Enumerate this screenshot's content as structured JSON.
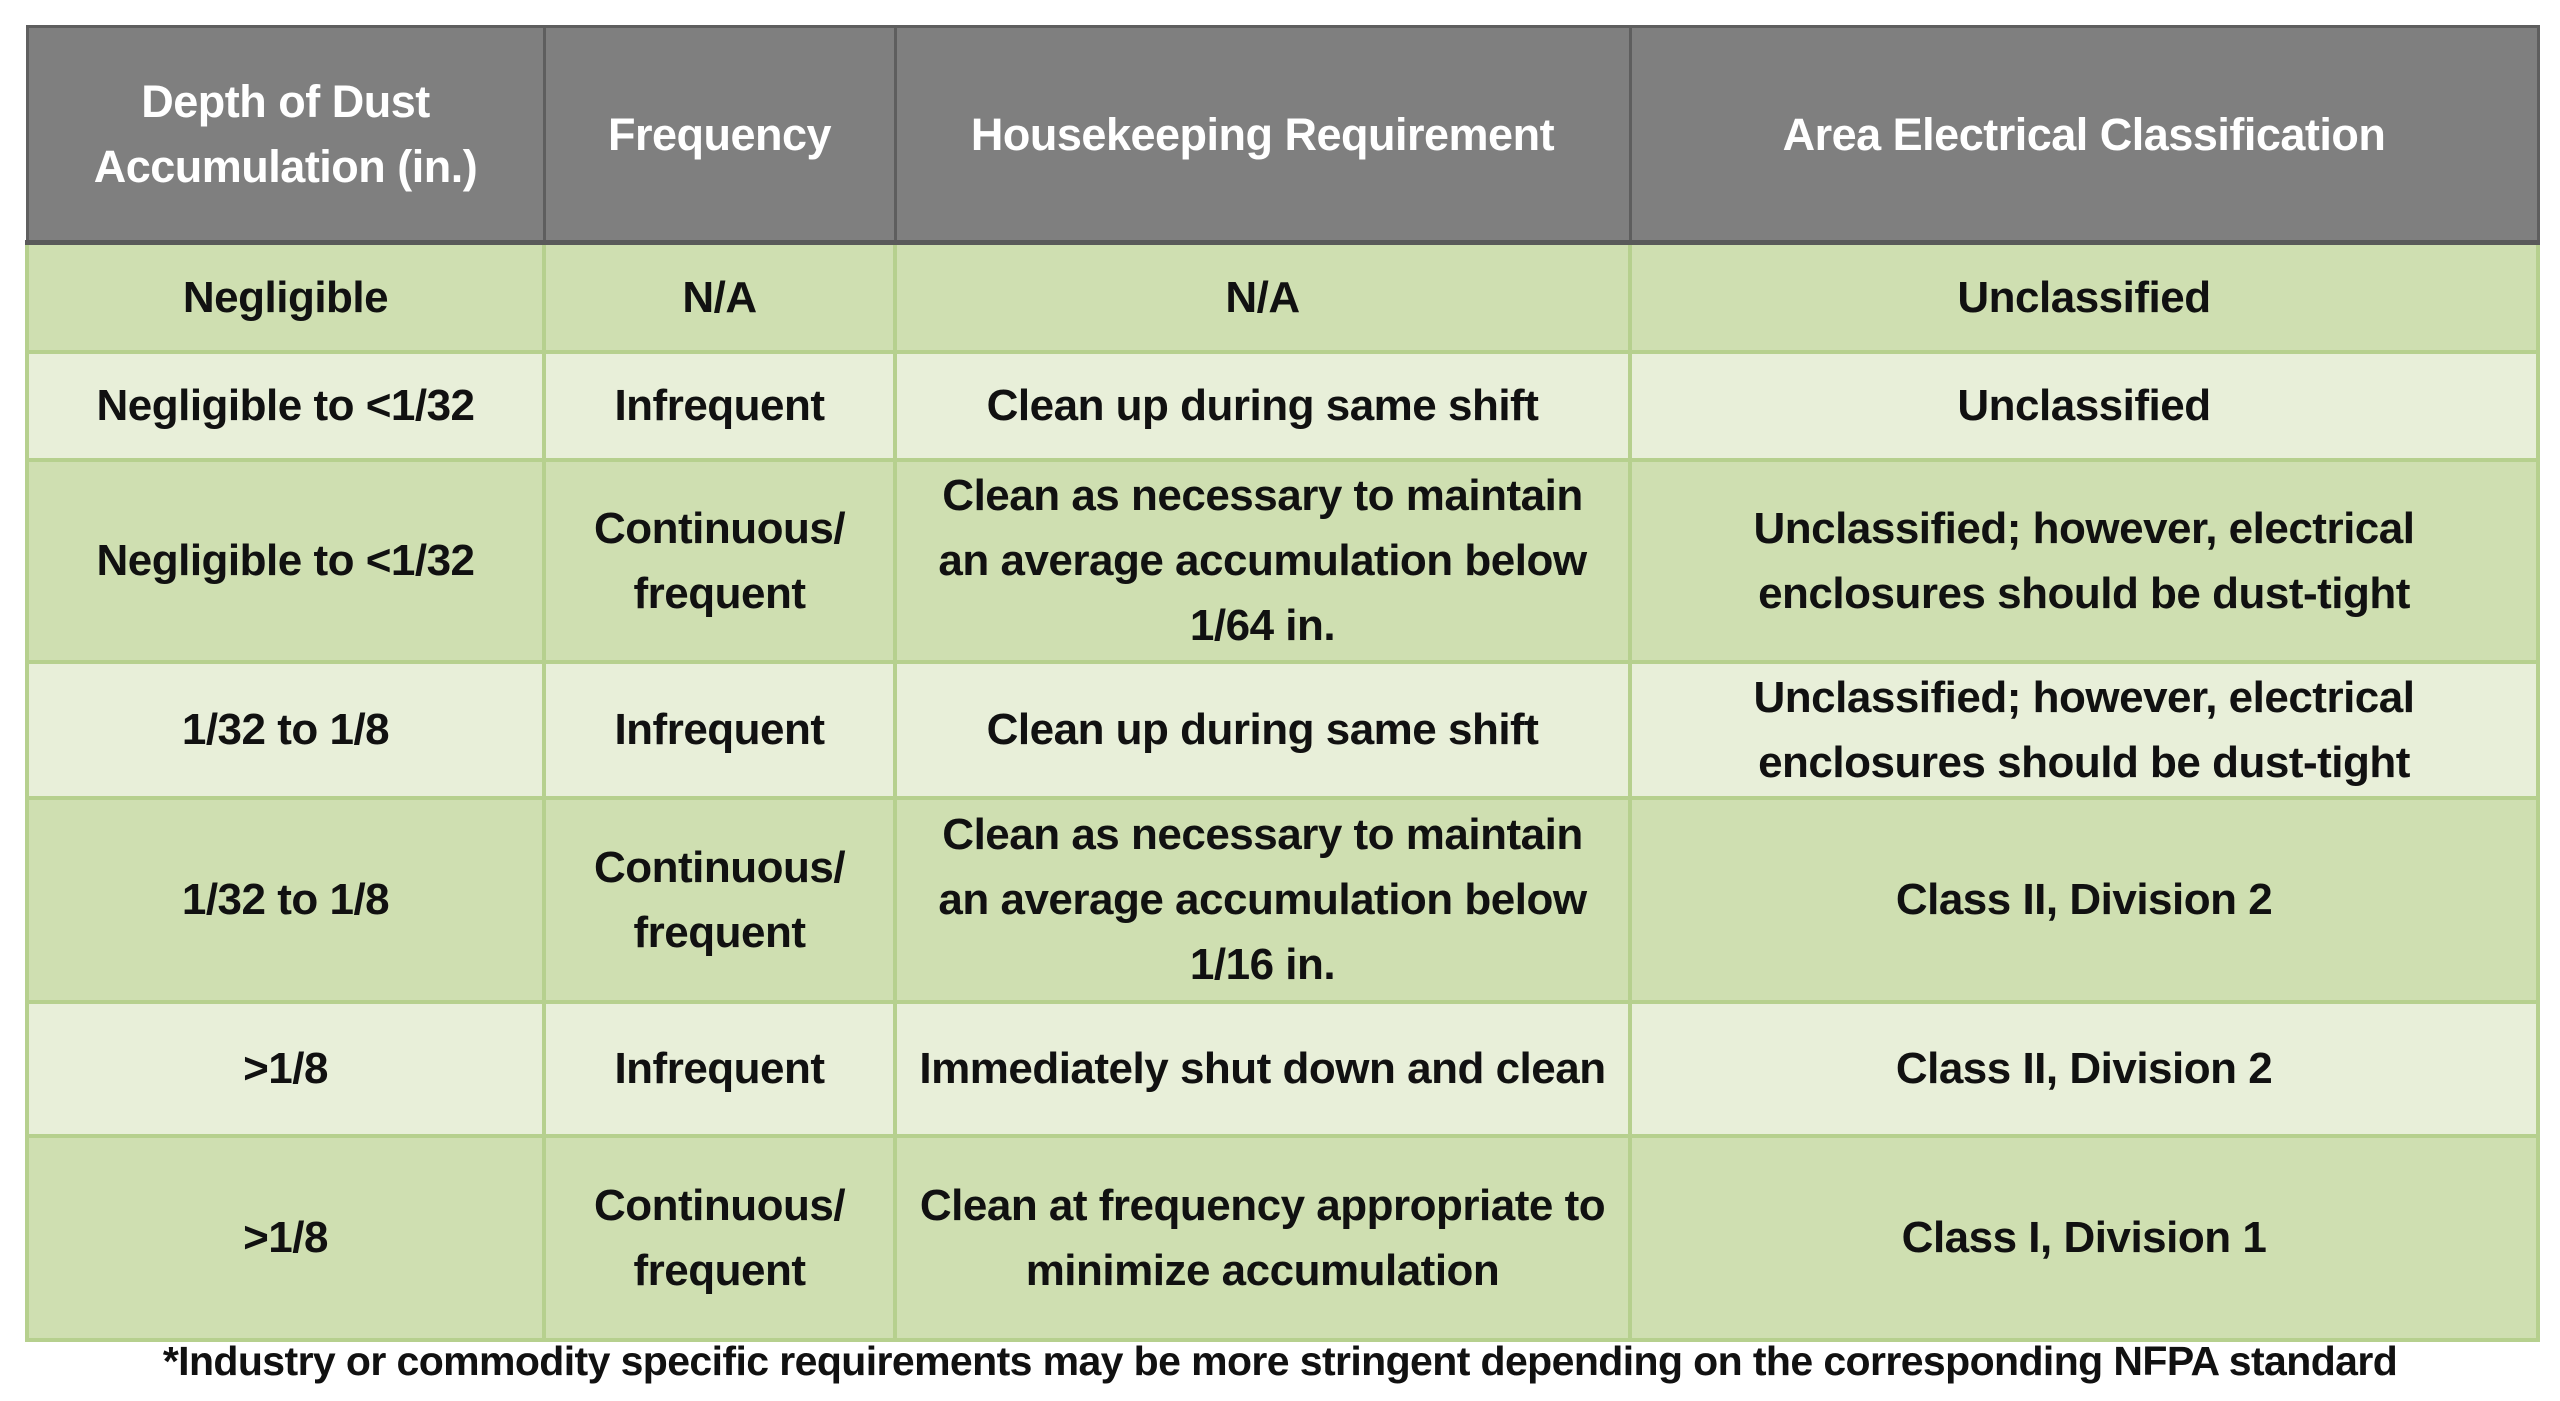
{
  "table": {
    "headers": [
      "Depth of Dust Accumulation (in.)",
      "Frequency",
      "Housekeeping Requirement",
      "Area Electrical Classification"
    ],
    "rows": [
      {
        "depth": "Negligible",
        "frequency": "N/A",
        "housekeeping": "N/A",
        "classification": "Unclassified"
      },
      {
        "depth": "Negligible to <1/32",
        "frequency": "Infrequent",
        "housekeeping": "Clean up during same shift",
        "classification": "Unclassified"
      },
      {
        "depth": "Negligible to <1/32",
        "frequency": "Continuous/ frequent",
        "housekeeping": "Clean as necessary to maintain an average accumulation below 1/64 in.",
        "classification": "Unclassified; however, electrical enclosures should be dust-tight"
      },
      {
        "depth": "1/32 to 1/8",
        "frequency": "Infrequent",
        "housekeeping": "Clean up during same shift",
        "classification": "Unclassified; however, electrical enclosures should be dust-tight"
      },
      {
        "depth": "1/32 to 1/8",
        "frequency": "Continuous/ frequent",
        "housekeeping": "Clean as necessary to maintain an average accumulation below 1/16 in.",
        "classification": "Class II, Division 2"
      },
      {
        "depth": ">1/8",
        "frequency": "Infrequent",
        "housekeeping": "Immediately shut down and clean",
        "classification": "Class II, Division 2"
      },
      {
        "depth": ">1/8",
        "frequency": "Continuous/ frequent",
        "housekeeping": "Clean at frequency appropriate to minimize accumulation",
        "classification": "Class I, Division 1"
      }
    ]
  },
  "footnote": "*Industry or commodity specific requirements may be more stringent depending on the corresponding NFPA standard",
  "colors": {
    "header": "#7f7f7f",
    "row_dark": "#cfdfb1",
    "row_light": "#e8efd9",
    "border": "#b6d08e"
  }
}
